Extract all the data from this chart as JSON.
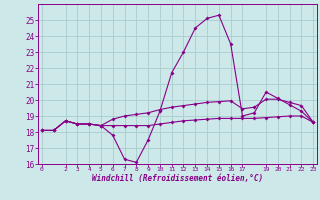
{
  "xlabel": "Windchill (Refroidissement éolien,°C)",
  "bg_color": "#cce8e8",
  "grid_color": "#aacccc",
  "line_color": "#880088",
  "hours": [
    0,
    1,
    2,
    3,
    4,
    5,
    6,
    7,
    8,
    9,
    10,
    11,
    12,
    13,
    14,
    15,
    16,
    17,
    18,
    19,
    20,
    21,
    22,
    23
  ],
  "windchill": [
    18.1,
    18.1,
    18.7,
    18.5,
    18.5,
    18.4,
    17.8,
    16.3,
    16.1,
    17.5,
    19.3,
    21.7,
    23.0,
    24.5,
    25.1,
    25.3,
    23.5,
    19.0,
    19.2,
    20.5,
    20.1,
    19.7,
    19.3,
    18.6
  ],
  "temp": [
    18.1,
    18.1,
    18.7,
    18.5,
    18.5,
    18.4,
    18.4,
    18.4,
    18.4,
    18.4,
    18.5,
    18.6,
    18.7,
    18.75,
    18.8,
    18.85,
    18.85,
    18.85,
    18.85,
    18.9,
    18.95,
    19.0,
    19.0,
    18.6
  ],
  "apparent": [
    18.1,
    18.1,
    18.7,
    18.5,
    18.5,
    18.4,
    18.8,
    19.0,
    19.1,
    19.2,
    19.4,
    19.55,
    19.65,
    19.75,
    19.85,
    19.9,
    19.95,
    19.45,
    19.55,
    20.05,
    20.05,
    19.85,
    19.65,
    18.6
  ],
  "ylim": [
    16,
    26
  ],
  "yticks": [
    16,
    17,
    18,
    19,
    20,
    21,
    22,
    23,
    24,
    25
  ],
  "xtick_positions": [
    0,
    2,
    3,
    4,
    5,
    6,
    7,
    8,
    9,
    10,
    11,
    12,
    13,
    14,
    15,
    16,
    17,
    19,
    20,
    21,
    22,
    23
  ],
  "xtick_labels": [
    "0",
    "2",
    "3",
    "4",
    "5",
    "6",
    "7",
    "8",
    "9",
    "10",
    "11",
    "12",
    "13",
    "14",
    "15",
    "16",
    "17",
    "19",
    "20",
    "21",
    "22",
    "23"
  ]
}
